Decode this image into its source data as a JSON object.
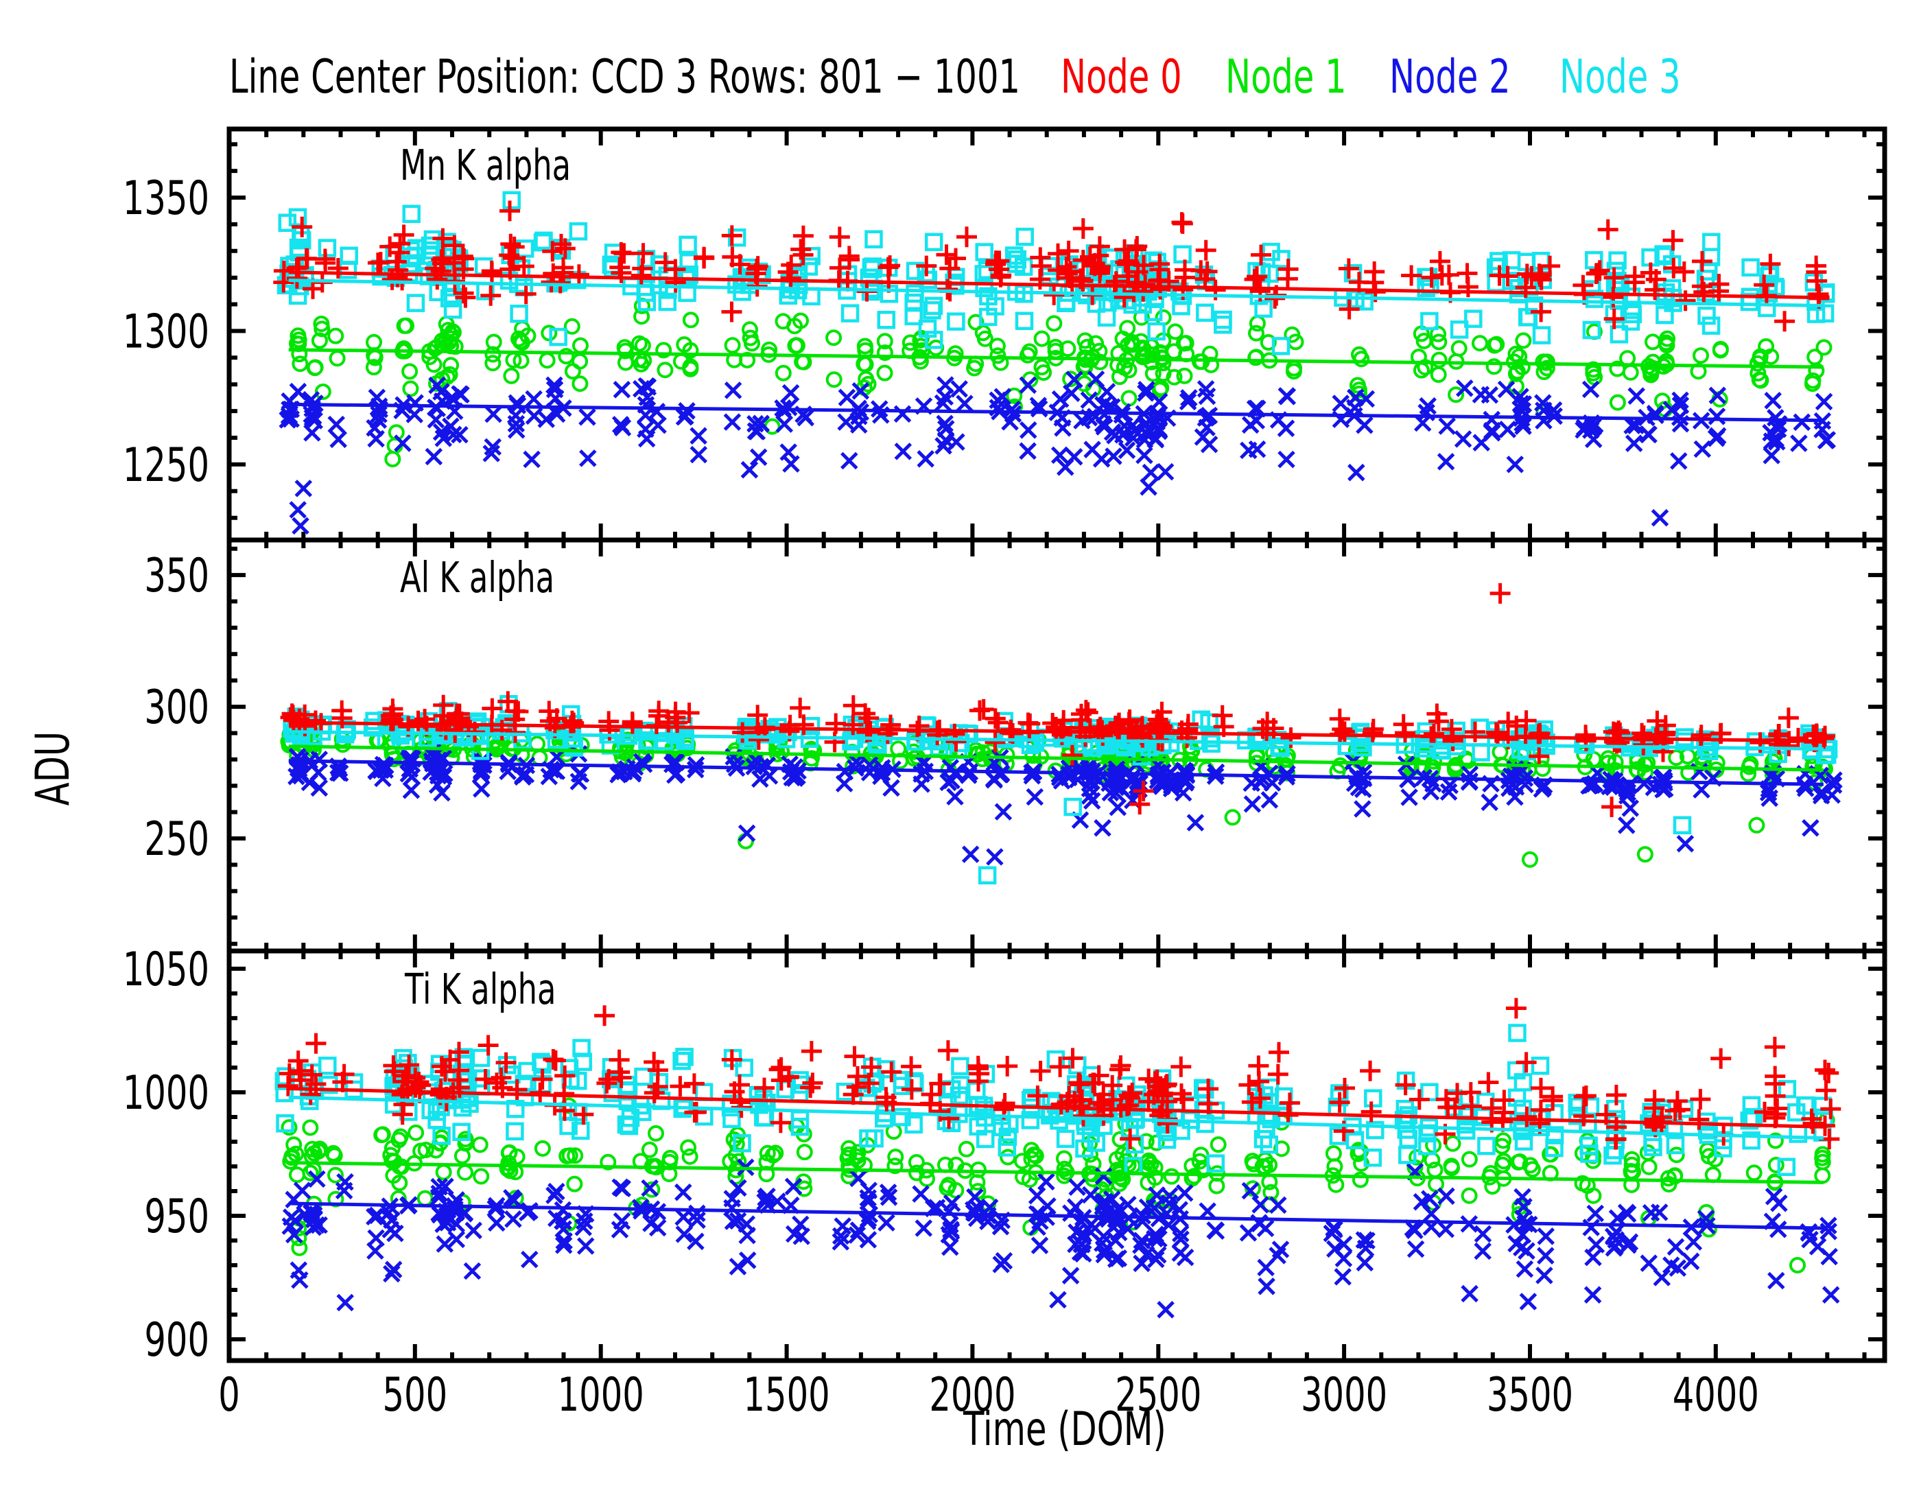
{
  "figure": {
    "title": "Line Center Position: CCD 3 Rows: 801 − 1001",
    "background": "#ffffff",
    "text_color": "#000000",
    "legend": [
      {
        "label": "Node 0",
        "color": "#f80000",
        "x": 1546
      },
      {
        "label": "Node 1",
        "color": "#00e400",
        "x": 1786
      },
      {
        "label": "Node 2",
        "color": "#1414e8",
        "x": 2025
      },
      {
        "label": "Node 3",
        "color": "#15e3ee",
        "x": 2273
      }
    ]
  },
  "chart_data": {
    "type": "scatter",
    "title": "Line Center Position: CCD 3 Rows: 801 − 1001",
    "xlabel": "Time (DOM)",
    "ylabel": "ADU",
    "grid": false,
    "x_axis": {
      "range": [
        0,
        4455
      ],
      "major_ticks": [
        0,
        500,
        1000,
        1500,
        2000,
        2500,
        3000,
        3500,
        4000
      ],
      "minor_step": 100
    },
    "panels": [
      {
        "label": "Mn K alpha",
        "y_range": [
          1221.7,
          1375.7
        ],
        "y_major_ticks": [
          1250,
          1300,
          1350
        ],
        "y_minor_step": 10,
        "series": [
          {
            "name": "Node 0",
            "marker": "plus",
            "color": "#f80000",
            "trend": {
              "t": [
                160,
                4290
              ],
              "adu": [
                1322.0,
                1312.5
              ]
            },
            "scatter": {
              "offset": 5,
              "sigma": 5,
              "tail_down": [
                0.1,
                12
              ],
              "tail_up": [
                0.1,
                14
              ],
              "density": 0.9
            }
          },
          {
            "name": "Node 1",
            "marker": "circle",
            "color": "#00e400",
            "trend": {
              "t": [
                160,
                4290
              ],
              "adu": [
                1293.0,
                1286.5
              ]
            },
            "scatter": {
              "offset": 2,
              "sigma": 5,
              "tail_down": [
                0.18,
                16
              ],
              "tail_up": [
                0.08,
                8
              ],
              "density": 1.1
            }
          },
          {
            "name": "Node 2",
            "marker": "x",
            "color": "#1414e8",
            "trend": {
              "t": [
                160,
                4290
              ],
              "adu": [
                1272.5,
                1266.5
              ]
            },
            "scatter": {
              "offset": -1,
              "sigma": 6,
              "tail_down": [
                0.2,
                20
              ],
              "tail_up": [
                0.1,
                10
              ],
              "density": 1.1
            }
          },
          {
            "name": "Node 3",
            "marker": "square",
            "color": "#15e3ee",
            "trend": {
              "t": [
                160,
                4290
              ],
              "adu": [
                1319.0,
                1309.5
              ]
            },
            "scatter": {
              "offset": 4,
              "sigma": 7,
              "tail_down": [
                0.12,
                12
              ],
              "tail_up": [
                0.1,
                12
              ],
              "density": 1.2
            }
          }
        ]
      },
      {
        "label": "Al K alpha",
        "y_range": [
          207.3,
          363.3
        ],
        "y_major_ticks": [
          250,
          300,
          350
        ],
        "y_minor_step": 10,
        "series": [
          {
            "name": "Node 0",
            "marker": "plus",
            "color": "#f80000",
            "trend": {
              "t": [
                160,
                4290
              ],
              "adu": [
                294.0,
                287.0
              ]
            },
            "scatter": {
              "offset": 1.5,
              "sigma": 2.2,
              "tail_down": [
                0.06,
                6
              ],
              "tail_up": [
                0.08,
                6
              ],
              "density": 0.9
            }
          },
          {
            "name": "Node 1",
            "marker": "circle",
            "color": "#00e400",
            "trend": {
              "t": [
                160,
                4290
              ],
              "adu": [
                285.0,
                276.0
              ]
            },
            "scatter": {
              "offset": 1,
              "sigma": 2.2,
              "tail_down": [
                0.1,
                7
              ],
              "tail_up": [
                0.05,
                4
              ],
              "density": 1.1
            }
          },
          {
            "name": "Node 2",
            "marker": "x",
            "color": "#1414e8",
            "trend": {
              "t": [
                160,
                4290
              ],
              "adu": [
                279.5,
                270.5
              ]
            },
            "scatter": {
              "offset": -1,
              "sigma": 2.5,
              "tail_down": [
                0.14,
                10
              ],
              "tail_up": [
                0.05,
                4
              ],
              "density": 1.1
            }
          },
          {
            "name": "Node 3",
            "marker": "square",
            "color": "#15e3ee",
            "trend": {
              "t": [
                160,
                4290
              ],
              "adu": [
                290.5,
                284.0
              ]
            },
            "scatter": {
              "offset": 1.5,
              "sigma": 2.2,
              "tail_down": [
                0.06,
                8
              ],
              "tail_up": [
                0.05,
                5
              ],
              "density": 1.2
            }
          }
        ]
      },
      {
        "label": "Ti K alpha",
        "y_range": [
          891.4,
          1057.2
        ],
        "y_major_ticks": [
          900,
          950,
          1000,
          1050
        ],
        "y_minor_step": 10,
        "series": [
          {
            "name": "Node 0",
            "marker": "plus",
            "color": "#f80000",
            "trend": {
              "t": [
                160,
                4290
              ],
              "adu": [
                1001.5,
                986.0
              ]
            },
            "scatter": {
              "offset": 5,
              "sigma": 6,
              "tail_down": [
                0.08,
                10
              ],
              "tail_up": [
                0.12,
                16
              ],
              "density": 0.9
            }
          },
          {
            "name": "Node 1",
            "marker": "circle",
            "color": "#00e400",
            "trend": {
              "t": [
                160,
                4290
              ],
              "adu": [
                971.5,
                963.5
              ]
            },
            "scatter": {
              "offset": 3,
              "sigma": 6,
              "tail_down": [
                0.16,
                18
              ],
              "tail_up": [
                0.08,
                10
              ],
              "density": 1.1
            }
          },
          {
            "name": "Node 2",
            "marker": "x",
            "color": "#1414e8",
            "trend": {
              "t": [
                160,
                4290
              ],
              "adu": [
                955.0,
                945.0
              ]
            },
            "scatter": {
              "offset": -2,
              "sigma": 7,
              "tail_down": [
                0.2,
                22
              ],
              "tail_up": [
                0.08,
                8
              ],
              "density": 1.1
            }
          },
          {
            "name": "Node 3",
            "marker": "square",
            "color": "#15e3ee",
            "trend": {
              "t": [
                160,
                4290
              ],
              "adu": [
                998.0,
                981.5
              ]
            },
            "scatter": {
              "offset": 4,
              "sigma": 8,
              "tail_down": [
                0.1,
                14
              ],
              "tail_up": [
                0.1,
                12
              ],
              "density": 1.2
            }
          }
        ]
      }
    ],
    "time_clusters": [
      [
        165,
        1
      ],
      [
        190,
        2
      ],
      [
        215,
        2
      ],
      [
        240,
        1
      ],
      [
        310,
        1
      ],
      [
        430,
        2
      ],
      [
        460,
        2
      ],
      [
        490,
        1
      ],
      [
        545,
        2
      ],
      [
        575,
        2
      ],
      [
        605,
        2
      ],
      [
        635,
        2
      ],
      [
        700,
        1
      ],
      [
        760,
        2
      ],
      [
        790,
        1
      ],
      [
        855,
        1
      ],
      [
        905,
        2
      ],
      [
        940,
        1
      ],
      [
        1040,
        1
      ],
      [
        1090,
        2
      ],
      [
        1130,
        1
      ],
      [
        1170,
        1
      ],
      [
        1210,
        1
      ],
      [
        1250,
        1
      ],
      [
        1370,
        1
      ],
      [
        1400,
        2
      ],
      [
        1440,
        1
      ],
      [
        1510,
        2
      ],
      [
        1550,
        1
      ],
      [
        1655,
        1
      ],
      [
        1700,
        2
      ],
      [
        1740,
        1
      ],
      [
        1790,
        1
      ],
      [
        1850,
        1
      ],
      [
        1900,
        2
      ],
      [
        1940,
        1
      ],
      [
        2010,
        1
      ],
      [
        2050,
        2
      ],
      [
        2090,
        1
      ],
      [
        2160,
        1
      ],
      [
        2200,
        2
      ],
      [
        2250,
        1
      ],
      [
        2290,
        2
      ],
      [
        2320,
        2
      ],
      [
        2350,
        3
      ],
      [
        2380,
        2
      ],
      [
        2410,
        3
      ],
      [
        2440,
        2
      ],
      [
        2470,
        3
      ],
      [
        2500,
        2
      ],
      [
        2530,
        2
      ],
      [
        2600,
        2
      ],
      [
        2650,
        1
      ],
      [
        2760,
        1
      ],
      [
        2800,
        2
      ],
      [
        2850,
        1
      ],
      [
        3010,
        2
      ],
      [
        3060,
        1
      ],
      [
        3200,
        2
      ],
      [
        3250,
        1
      ],
      [
        3300,
        1
      ],
      [
        3350,
        1
      ],
      [
        3400,
        1
      ],
      [
        3460,
        2
      ],
      [
        3500,
        2
      ],
      [
        3540,
        1
      ],
      [
        3650,
        1
      ],
      [
        3700,
        2
      ],
      [
        3750,
        1
      ],
      [
        3800,
        2
      ],
      [
        3840,
        1
      ],
      [
        3880,
        2
      ],
      [
        3960,
        1
      ],
      [
        4000,
        1
      ],
      [
        4130,
        2
      ],
      [
        4170,
        1
      ],
      [
        4260,
        2
      ],
      [
        4290,
        1
      ]
    ],
    "outliers": [
      [
        0,
        2,
        185,
        1233
      ],
      [
        0,
        2,
        192,
        1227
      ],
      [
        0,
        2,
        200,
        1241
      ],
      [
        0,
        1,
        440,
        1252
      ],
      [
        0,
        1,
        446,
        1257
      ],
      [
        0,
        1,
        450,
        1262
      ],
      [
        0,
        3,
        760,
        1349
      ],
      [
        0,
        0,
        755,
        1345
      ],
      [
        0,
        0,
        196,
        1339
      ],
      [
        0,
        0,
        470,
        1336
      ],
      [
        0,
        3,
        196,
        1334
      ],
      [
        0,
        2,
        1400,
        1248
      ],
      [
        0,
        2,
        2250,
        1249
      ],
      [
        0,
        2,
        2480,
        1247
      ],
      [
        0,
        0,
        3710,
        1338
      ],
      [
        0,
        0,
        3885,
        1334
      ],
      [
        0,
        2,
        3850,
        1230
      ],
      [
        0,
        2,
        3460,
        1250
      ],
      [
        1,
        0,
        3420,
        343
      ],
      [
        1,
        0,
        2030,
        299
      ],
      [
        1,
        0,
        750,
        302
      ],
      [
        1,
        3,
        752,
        301
      ],
      [
        1,
        3,
        2040,
        236
      ],
      [
        1,
        2,
        1995,
        244
      ],
      [
        1,
        2,
        2060,
        243
      ],
      [
        1,
        1,
        1390,
        249
      ],
      [
        1,
        2,
        1393,
        252
      ],
      [
        1,
        0,
        2450,
        263
      ],
      [
        1,
        0,
        2460,
        268
      ],
      [
        1,
        3,
        2270,
        262
      ],
      [
        1,
        2,
        2350,
        254
      ],
      [
        1,
        2,
        2290,
        257
      ],
      [
        1,
        1,
        3500,
        242
      ],
      [
        1,
        0,
        3720,
        262
      ],
      [
        1,
        1,
        3810,
        244
      ],
      [
        1,
        2,
        3760,
        255
      ],
      [
        1,
        3,
        3910,
        255
      ],
      [
        1,
        2,
        3918,
        248
      ],
      [
        1,
        1,
        4110,
        255
      ],
      [
        1,
        2,
        4255,
        254
      ],
      [
        1,
        1,
        2700,
        258
      ],
      [
        1,
        2,
        2600,
        256
      ],
      [
        2,
        0,
        1010,
        1031
      ],
      [
        2,
        0,
        745,
        1012
      ],
      [
        2,
        3,
        748,
        1011
      ],
      [
        2,
        1,
        187,
        941
      ],
      [
        2,
        1,
        187,
        945
      ],
      [
        2,
        1,
        188,
        949
      ],
      [
        2,
        1,
        189,
        937
      ],
      [
        2,
        2,
        187,
        928
      ],
      [
        2,
        2,
        190,
        924
      ],
      [
        2,
        2,
        2230,
        916
      ],
      [
        2,
        2,
        2520,
        912
      ],
      [
        2,
        2,
        2355,
        936
      ],
      [
        2,
        1,
        4220,
        930
      ],
      [
        2,
        2,
        4310,
        918
      ],
      [
        2,
        2,
        3880,
        930
      ],
      [
        2,
        0,
        3463,
        1034
      ],
      [
        2,
        3,
        3466,
        1024
      ],
      [
        2,
        2,
        1395,
        932
      ]
    ]
  }
}
